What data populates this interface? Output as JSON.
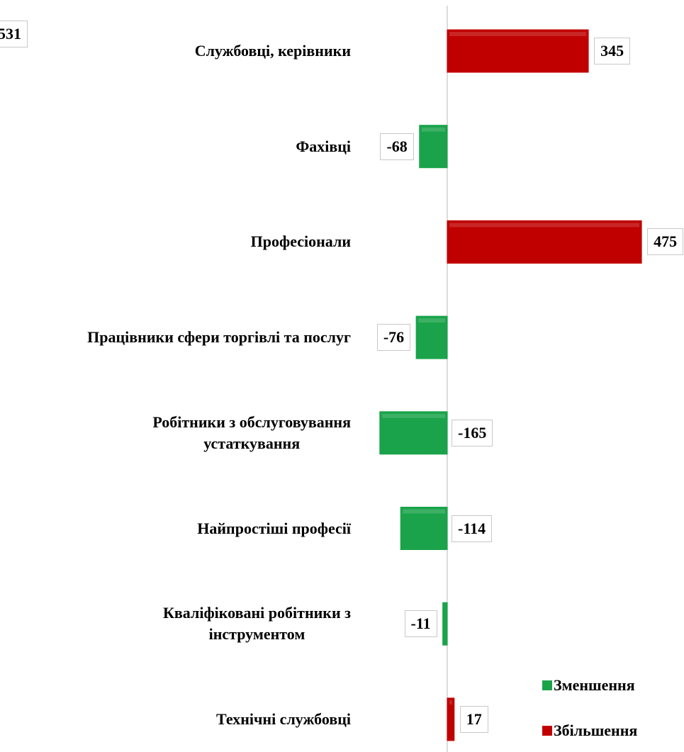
{
  "chart_data": {
    "type": "bar",
    "orientation": "horizontal",
    "categories": [
      "Службовці, керівники",
      "Фахівці",
      "Професіонали",
      "Працівники сфери торгівлі та послуг",
      "Робітники з обслуговування\nустаткування",
      "Найпростіші професії",
      "Кваліфіковані робітники з\nінструментом",
      "Технічні службовці"
    ],
    "values": [
      345,
      -68,
      475,
      -76,
      -165,
      -114,
      -11,
      17
    ],
    "legend": [
      {
        "name": "Зменшення",
        "color": "#1aa34a"
      },
      {
        "name": "Збільшення",
        "color": "#c00000"
      }
    ],
    "annotation": "531"
  }
}
